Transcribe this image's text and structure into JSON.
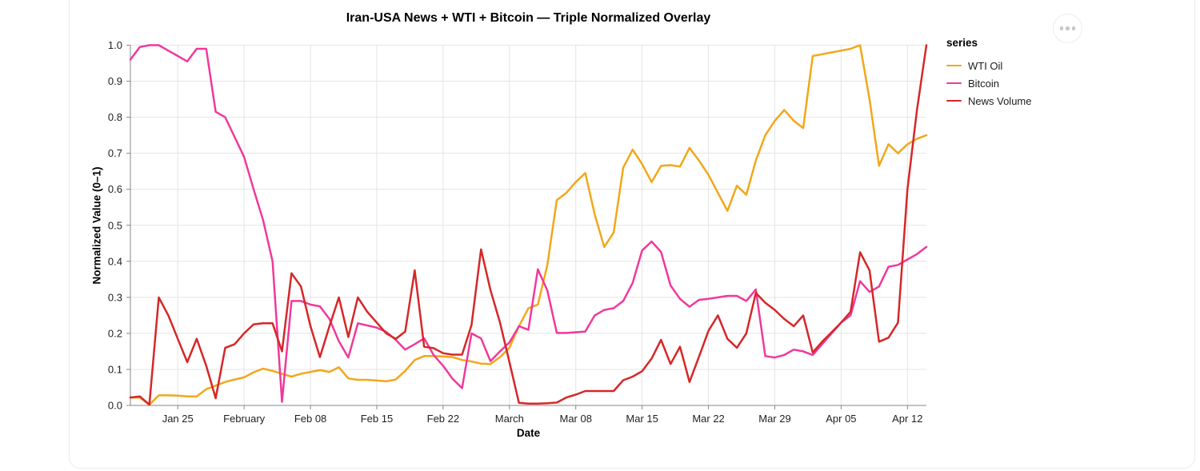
{
  "card": {
    "more_button": "more options"
  },
  "chart": {
    "title": "Iran-USA News + WTI + Bitcoin — Triple Normalized Overlay",
    "x_label": "Date",
    "y_label": "Normalized Value (0–1)",
    "legend_title": "series"
  },
  "chart_data": {
    "type": "line",
    "title": "Iran-USA News + WTI + Bitcoin — Triple Normalized Overlay",
    "xlabel": "Date",
    "ylabel": "Normalized Value (0–1)",
    "ylim": [
      0.0,
      1.0
    ],
    "grid": true,
    "legend_position": "right",
    "legend_title": "series",
    "y_ticks": [
      "0.0",
      "0.1",
      "0.2",
      "0.3",
      "0.4",
      "0.5",
      "0.6",
      "0.7",
      "0.8",
      "0.9",
      "1.0"
    ],
    "x_tick_labels": [
      "Jan 25",
      "February",
      "Feb 08",
      "Feb 15",
      "Feb 22",
      "March",
      "Mar 08",
      "Mar 15",
      "Mar 22",
      "Mar 29",
      "Apr 05",
      "Apr 12"
    ],
    "x_tick_indices": [
      5,
      12,
      19,
      26,
      33,
      40,
      47,
      54,
      61,
      68,
      75,
      82
    ],
    "categories": [
      "Jan 20",
      "Jan 21",
      "Jan 22",
      "Jan 23",
      "Jan 24",
      "Jan 25",
      "Jan 26",
      "Jan 27",
      "Jan 28",
      "Jan 29",
      "Jan 30",
      "Jan 31",
      "Feb 01",
      "Feb 02",
      "Feb 03",
      "Feb 04",
      "Feb 05",
      "Feb 06",
      "Feb 07",
      "Feb 08",
      "Feb 09",
      "Feb 10",
      "Feb 11",
      "Feb 12",
      "Feb 13",
      "Feb 14",
      "Feb 15",
      "Feb 16",
      "Feb 17",
      "Feb 18",
      "Feb 19",
      "Feb 20",
      "Feb 21",
      "Feb 22",
      "Feb 23",
      "Feb 24",
      "Feb 25",
      "Feb 26",
      "Feb 27",
      "Feb 28",
      "Mar 01",
      "Mar 02",
      "Mar 03",
      "Mar 04",
      "Mar 05",
      "Mar 06",
      "Mar 07",
      "Mar 08",
      "Mar 09",
      "Mar 10",
      "Mar 11",
      "Mar 12",
      "Mar 13",
      "Mar 14",
      "Mar 15",
      "Mar 16",
      "Mar 17",
      "Mar 18",
      "Mar 19",
      "Mar 20",
      "Mar 21",
      "Mar 22",
      "Mar 23",
      "Mar 24",
      "Mar 25",
      "Mar 26",
      "Mar 27",
      "Mar 28",
      "Mar 29",
      "Mar 30",
      "Mar 31",
      "Apr 01",
      "Apr 02",
      "Apr 03",
      "Apr 04",
      "Apr 05",
      "Apr 06",
      "Apr 07",
      "Apr 08",
      "Apr 09",
      "Apr 10",
      "Apr 11",
      "Apr 12",
      "Apr 13",
      "Apr 14"
    ],
    "series": [
      {
        "name": "WTI Oil",
        "color": "#F2A71B",
        "values": [
          0.022,
          0.022,
          0.002,
          0.028,
          0.028,
          0.027,
          0.025,
          0.025,
          0.045,
          0.055,
          0.065,
          0.072,
          0.078,
          0.092,
          0.102,
          0.096,
          0.088,
          0.08,
          0.088,
          0.093,
          0.098,
          0.093,
          0.106,
          0.075,
          0.071,
          0.071,
          0.069,
          0.067,
          0.072,
          0.096,
          0.126,
          0.137,
          0.137,
          0.136,
          0.134,
          0.126,
          0.122,
          0.116,
          0.115,
          0.134,
          0.16,
          0.22,
          0.27,
          0.28,
          0.39,
          0.57,
          0.59,
          0.62,
          0.645,
          0.53,
          0.44,
          0.48,
          0.66,
          0.71,
          0.67,
          0.62,
          0.665,
          0.667,
          0.663,
          0.715,
          0.68,
          0.64,
          0.59,
          0.54,
          0.61,
          0.585,
          0.68,
          0.75,
          0.79,
          0.82,
          0.79,
          0.77,
          0.97,
          0.975,
          0.98,
          0.985,
          0.99,
          1.0,
          0.85,
          0.665,
          0.725,
          0.7,
          0.725,
          0.74,
          0.75
        ]
      },
      {
        "name": "Bitcoin",
        "color": "#F0399C",
        "values": [
          0.96,
          0.995,
          1.0,
          1.0,
          0.985,
          0.97,
          0.955,
          0.99,
          0.99,
          0.815,
          0.8,
          0.745,
          0.69,
          0.6,
          0.515,
          0.4,
          0.01,
          0.29,
          0.29,
          0.28,
          0.275,
          0.24,
          0.178,
          0.133,
          0.228,
          0.222,
          0.216,
          0.204,
          0.182,
          0.155,
          0.17,
          0.186,
          0.14,
          0.11,
          0.074,
          0.048,
          0.2,
          0.186,
          0.123,
          0.15,
          0.175,
          0.22,
          0.21,
          0.378,
          0.319,
          0.201,
          0.201,
          0.203,
          0.205,
          0.25,
          0.265,
          0.27,
          0.29,
          0.34,
          0.43,
          0.455,
          0.426,
          0.333,
          0.296,
          0.274,
          0.293,
          0.296,
          0.3,
          0.304,
          0.304,
          0.29,
          0.322,
          0.137,
          0.133,
          0.14,
          0.155,
          0.15,
          0.14,
          0.17,
          0.2,
          0.23,
          0.25,
          0.345,
          0.315,
          0.33,
          0.385,
          0.39,
          0.405,
          0.42,
          0.44
        ]
      },
      {
        "name": "News Volume",
        "color": "#D62728",
        "values": [
          0.022,
          0.025,
          0.002,
          0.3,
          0.25,
          0.185,
          0.12,
          0.185,
          0.11,
          0.02,
          0.16,
          0.17,
          0.2,
          0.225,
          0.228,
          0.228,
          0.15,
          0.367,
          0.33,
          0.22,
          0.134,
          0.22,
          0.3,
          0.19,
          0.3,
          0.26,
          0.23,
          0.2,
          0.185,
          0.205,
          0.375,
          0.163,
          0.159,
          0.145,
          0.141,
          0.141,
          0.223,
          0.433,
          0.32,
          0.23,
          0.12,
          0.007,
          0.005,
          0.005,
          0.006,
          0.008,
          0.022,
          0.03,
          0.04,
          0.04,
          0.04,
          0.04,
          0.07,
          0.08,
          0.095,
          0.13,
          0.182,
          0.115,
          0.163,
          0.065,
          0.135,
          0.207,
          0.25,
          0.185,
          0.16,
          0.2,
          0.312,
          0.285,
          0.265,
          0.24,
          0.22,
          0.25,
          0.147,
          0.177,
          0.203,
          0.23,
          0.26,
          0.425,
          0.375,
          0.177,
          0.188,
          0.23,
          0.6,
          0.82,
          1.0
        ]
      }
    ]
  }
}
